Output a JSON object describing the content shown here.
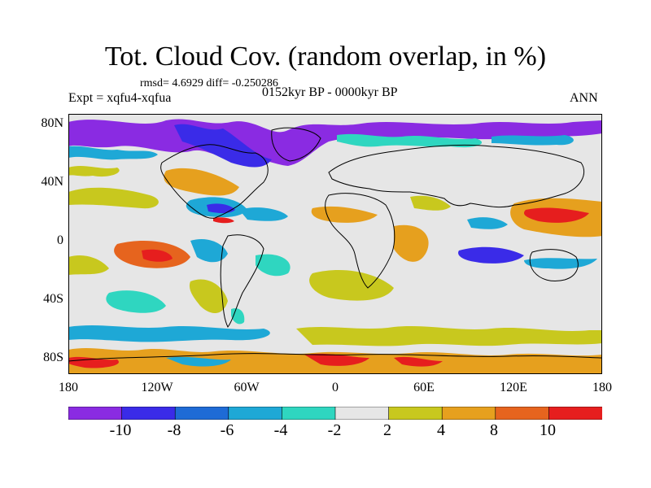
{
  "title": "Tot. Cloud Cov. (random overlap, in %)",
  "stats": "rmsd= 4.6929 diff= -0.250286",
  "experiment": "Expt = xqfu4-xqfua",
  "period": "0152kyr BP - 0000kyr BP",
  "season": "ANN",
  "y_ticks": [
    "80N",
    "40N",
    "0",
    "40S",
    "80S"
  ],
  "x_ticks": [
    "180",
    "120W",
    "60W",
    "0",
    "60E",
    "120E",
    "180"
  ],
  "colorbar": {
    "labels": [
      "-10",
      "-8",
      "-6",
      "-4",
      "-2",
      "2",
      "4",
      "8",
      "10"
    ],
    "colors": [
      "#8a2be2",
      "#3a2be8",
      "#1e6bd6",
      "#1ea8d6",
      "#2fd6c0",
      "#e6e6e6",
      "#c8c81e",
      "#e6a01e",
      "#e6641e",
      "#e61e1e"
    ]
  },
  "map_style": {
    "neutral": "#e6e6e6",
    "coastline": "#000000"
  }
}
